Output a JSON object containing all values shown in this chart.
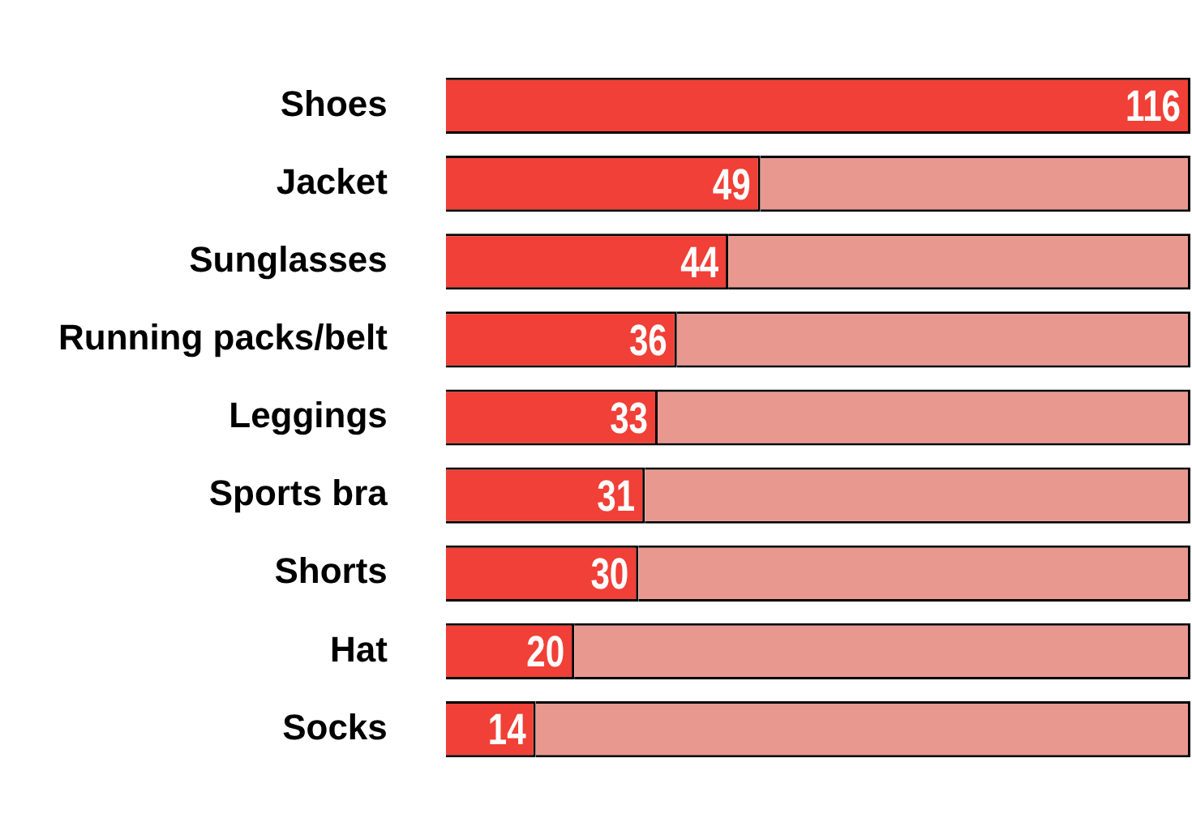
{
  "chart_data": {
    "type": "bar",
    "orientation": "horizontal",
    "categories": [
      "Shoes",
      "Jacket",
      "Sunglasses",
      "Running packs/belt",
      "Leggings",
      "Sports bra",
      "Shorts",
      "Hat",
      "Socks"
    ],
    "series": [
      {
        "color": "#f04037",
        "values": [
          116,
          49,
          44,
          36,
          33,
          31,
          30,
          20,
          14
        ],
        "value_labels": [
          "116",
          "49",
          "44",
          "36",
          "33",
          "31",
          "30",
          "20",
          "14"
        ]
      },
      {
        "color": "#e99890",
        "values": [
          0,
          67,
          72,
          80,
          83,
          85,
          86,
          96,
          102
        ]
      }
    ],
    "xlim": [
      0,
      116
    ],
    "stacked": true,
    "tick_labels": "y",
    "legend": false
  }
}
